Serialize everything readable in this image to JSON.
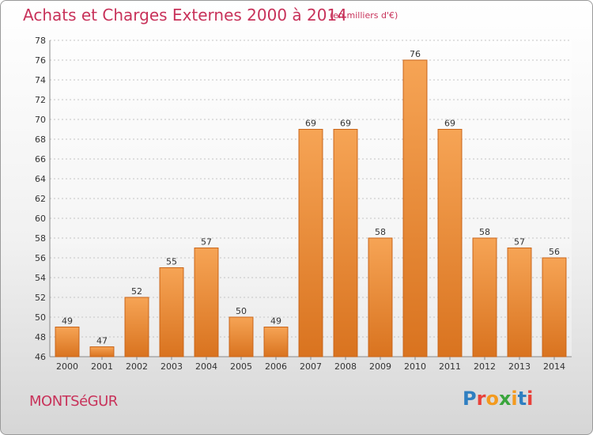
{
  "header": {
    "title": "Achats et Charges Externes 2000 à 2014",
    "subtitle": "(en milliers d'€)"
  },
  "footer": {
    "commune": "MONTSéGUR",
    "brand": "Proxiti"
  },
  "colors": {
    "title": "#c8325a",
    "bar_light": "#f6a455",
    "bar_dark": "#d9731f",
    "bar_edge": "#c9651a"
  },
  "chart_data": {
    "type": "bar",
    "title": "Achats et Charges Externes 2000 à 2014",
    "unit": "en milliers d'€",
    "categories": [
      "2000",
      "2001",
      "2002",
      "2003",
      "2004",
      "2005",
      "2006",
      "2007",
      "2008",
      "2009",
      "2010",
      "2011",
      "2012",
      "2013",
      "2014"
    ],
    "values": [
      49,
      47,
      52,
      55,
      57,
      50,
      49,
      69,
      69,
      58,
      76,
      69,
      58,
      57,
      56
    ],
    "ylim": [
      46,
      78
    ],
    "yticks": [
      46,
      48,
      50,
      52,
      54,
      56,
      58,
      60,
      62,
      64,
      66,
      68,
      70,
      72,
      74,
      76,
      78
    ],
    "grid": true,
    "xlabel": "",
    "ylabel": ""
  }
}
